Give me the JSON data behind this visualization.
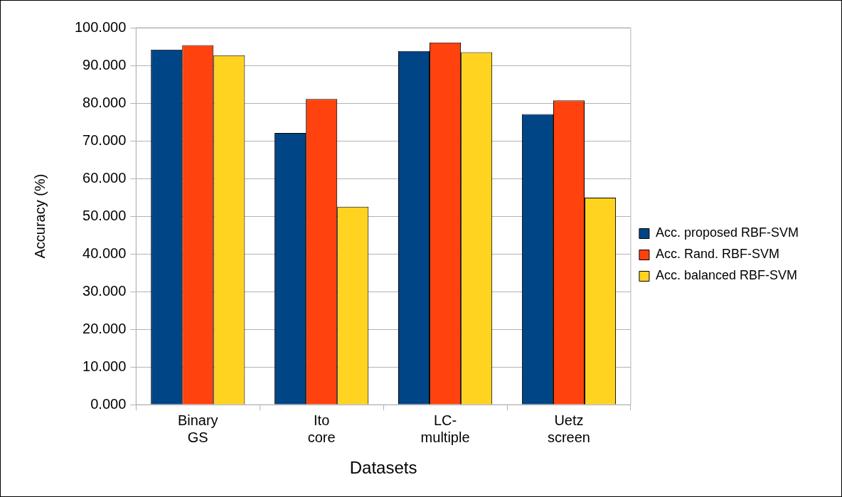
{
  "chart_data": {
    "type": "bar",
    "xlabel": "Datasets",
    "ylabel": "Accuracy (%)",
    "categories": [
      "Binary GS",
      "Ito core",
      "LC-multiple",
      "Uetz screen"
    ],
    "series": [
      {
        "name": "Acc. proposed RBF-SVM",
        "color": "#004586",
        "values": [
          94.2,
          72.1,
          93.8,
          77.1
        ]
      },
      {
        "name": "Acc. Rand. RBF-SVM",
        "color": "#ff420e",
        "values": [
          95.4,
          81.1,
          96.1,
          80.7
        ]
      },
      {
        "name": "Acc. balanced RBF-SVM",
        "color": "#ffd320",
        "values": [
          92.7,
          52.5,
          93.5,
          54.9
        ]
      }
    ],
    "ylim": [
      0,
      100
    ],
    "yticks": [
      {
        "value": 0,
        "label": "0.000"
      },
      {
        "value": 10,
        "label": "10.000"
      },
      {
        "value": 20,
        "label": "20.000"
      },
      {
        "value": 30,
        "label": "30.000"
      },
      {
        "value": 40,
        "label": "40.000"
      },
      {
        "value": 50,
        "label": "50.000"
      },
      {
        "value": 60,
        "label": "60.000"
      },
      {
        "value": 70,
        "label": "70.000"
      },
      {
        "value": 80,
        "label": "80.000"
      },
      {
        "value": 90,
        "label": "90.000"
      },
      {
        "value": 100,
        "label": "100.000"
      }
    ],
    "grid": "y",
    "legend": "right"
  }
}
